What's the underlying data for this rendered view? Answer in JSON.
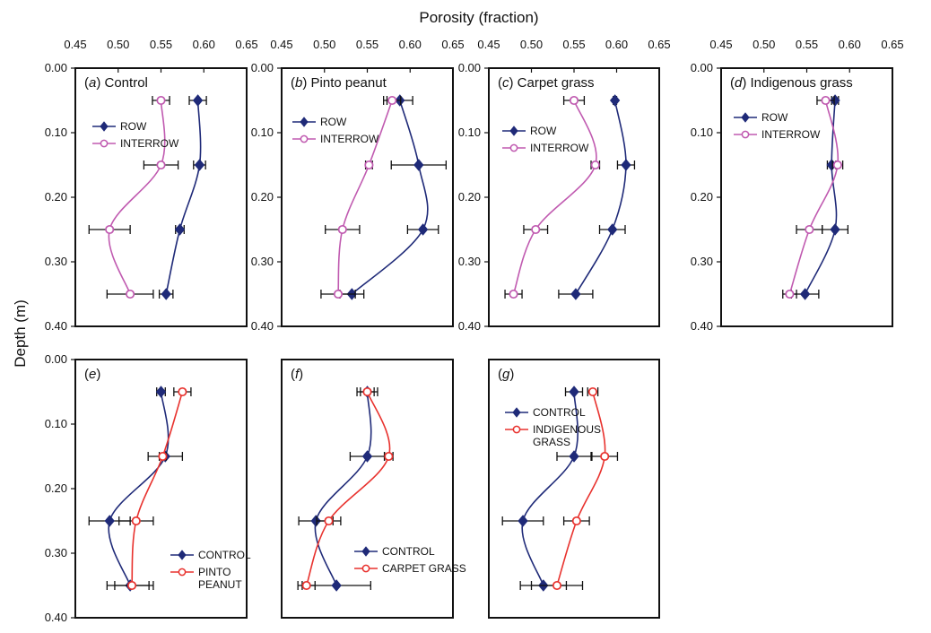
{
  "figure": {
    "x_axis_title": "Porosity (fraction)",
    "y_axis_title": "Depth (m)"
  },
  "chart_data": [
    {
      "type": "line",
      "panel_letter": "a",
      "panel_title": "Control",
      "xlim": [
        0.45,
        0.65
      ],
      "xticks": [
        "0.45",
        "0.50",
        "0.55",
        "0.60",
        "0.65"
      ],
      "ylim": [
        0,
        0.4
      ],
      "yticks": [
        "0.00",
        "0.10",
        "0.20",
        "0.30",
        "0.40"
      ],
      "legend_position": "upper-left",
      "depths": [
        0.05,
        0.15,
        0.25,
        0.35
      ],
      "series": [
        {
          "name": "ROW",
          "color": "#1f2a78",
          "marker": "diamond",
          "values": [
            0.593,
            0.595,
            0.572,
            0.556
          ],
          "errors": [
            0.01,
            0.007,
            0.005,
            0.008
          ]
        },
        {
          "name": "INTERROW",
          "color": "#c05ab0",
          "marker": "open-circle",
          "values": [
            0.55,
            0.55,
            0.49,
            0.514
          ],
          "errors": [
            0.01,
            0.02,
            0.024,
            0.027
          ]
        }
      ]
    },
    {
      "type": "line",
      "panel_letter": "b",
      "panel_title": "Pinto peanut",
      "xlim": [
        0.45,
        0.65
      ],
      "xticks": [
        "0.45",
        "0.50",
        "0.55",
        "0.60",
        "0.65"
      ],
      "ylim": [
        0,
        0.4
      ],
      "yticks": [
        "0.00",
        "0.10",
        "0.20",
        "0.30",
        "0.40"
      ],
      "legend_position": "upper-left",
      "depths": [
        0.05,
        0.15,
        0.25,
        0.35
      ],
      "series": [
        {
          "name": "ROW",
          "color": "#1f2a78",
          "marker": "diamond",
          "values": [
            0.588,
            0.61,
            0.615,
            0.532
          ],
          "errors": [
            0.015,
            0.032,
            0.018,
            0.014
          ]
        },
        {
          "name": "INTERROW",
          "color": "#c05ab0",
          "marker": "open-circle",
          "values": [
            0.579,
            0.552,
            0.521,
            0.516
          ],
          "errors": [
            0.01,
            0.004,
            0.02,
            0.02
          ]
        }
      ]
    },
    {
      "type": "line",
      "panel_letter": "c",
      "panel_title": "Carpet grass",
      "xlim": [
        0.45,
        0.65
      ],
      "xticks": [
        "0.45",
        "0.50",
        "0.55",
        "0.60",
        "0.65"
      ],
      "ylim": [
        0,
        0.4
      ],
      "yticks": [
        "0.00",
        "0.10",
        "0.20",
        "0.30",
        "0.40"
      ],
      "legend_position": "upper-left",
      "depths": [
        0.05,
        0.15,
        0.25,
        0.35
      ],
      "series": [
        {
          "name": "ROW",
          "color": "#1f2a78",
          "marker": "diamond",
          "values": [
            0.598,
            0.611,
            0.595,
            0.552
          ],
          "errors": [
            0.002,
            0.01,
            0.015,
            0.02
          ]
        },
        {
          "name": "INTERROW",
          "color": "#c05ab0",
          "marker": "open-circle",
          "values": [
            0.55,
            0.575,
            0.505,
            0.479
          ],
          "errors": [
            0.012,
            0.005,
            0.014,
            0.01
          ]
        }
      ]
    },
    {
      "type": "line",
      "panel_letter": "d",
      "panel_title": "Indigenous grass",
      "xlim": [
        0.45,
        0.65
      ],
      "xticks": [
        "0.45",
        "0.50",
        "0.55",
        "0.60",
        "0.65"
      ],
      "ylim": [
        0,
        0.4
      ],
      "yticks": [
        "0.00",
        "0.10",
        "0.20",
        "0.30",
        "0.40"
      ],
      "legend_position": "upper-left",
      "depths": [
        0.05,
        0.15,
        0.25,
        0.35
      ],
      "series": [
        {
          "name": "ROW",
          "color": "#1f2a78",
          "marker": "diamond",
          "values": [
            0.583,
            0.579,
            0.583,
            0.548
          ],
          "errors": [
            0.004,
            0.005,
            0.015,
            0.016
          ]
        },
        {
          "name": "INTERROW",
          "color": "#c05ab0",
          "marker": "open-circle",
          "values": [
            0.572,
            0.586,
            0.553,
            0.53
          ],
          "errors": [
            0.01,
            0.006,
            0.015,
            0.008
          ]
        }
      ]
    },
    {
      "type": "line",
      "panel_letter": "e",
      "panel_title": "",
      "xlim": [
        0.45,
        0.65
      ],
      "xticks": [],
      "ylim": [
        0,
        0.4
      ],
      "yticks": [
        "0.00",
        "0.10",
        "0.20",
        "0.30",
        "0.40"
      ],
      "legend_position": "lower-right",
      "depths": [
        0.05,
        0.15,
        0.25,
        0.35
      ],
      "series": [
        {
          "name": "CONTROL",
          "color": "#1f2a78",
          "marker": "diamond",
          "values": [
            0.55,
            0.555,
            0.49,
            0.514
          ],
          "errors": [
            0.005,
            0.02,
            0.024,
            0.027
          ]
        },
        {
          "name": "PINTO\nPEANUT",
          "color": "#e8322e",
          "marker": "open-circle",
          "values": [
            0.575,
            0.552,
            0.521,
            0.516
          ],
          "errors": [
            0.01,
            0.004,
            0.02,
            0.02
          ]
        }
      ]
    },
    {
      "type": "line",
      "panel_letter": "f",
      "panel_title": "",
      "xlim": [
        0.45,
        0.65
      ],
      "xticks": [],
      "ylim": [
        0,
        0.4
      ],
      "yticks": [],
      "legend_position": "lower-right",
      "depths": [
        0.05,
        0.15,
        0.25,
        0.35
      ],
      "series": [
        {
          "name": "CONTROL",
          "color": "#1f2a78",
          "marker": "diamond",
          "values": [
            0.55,
            0.55,
            0.49,
            0.514
          ],
          "errors": [
            0.008,
            0.02,
            0.02,
            0.04
          ]
        },
        {
          "name": "CARPET GRASS",
          "color": "#e8322e",
          "marker": "open-circle",
          "values": [
            0.55,
            0.575,
            0.505,
            0.479
          ],
          "errors": [
            0.012,
            0.005,
            0.014,
            0.01
          ]
        }
      ]
    },
    {
      "type": "line",
      "panel_letter": "g",
      "panel_title": "",
      "xlim": [
        0.45,
        0.65
      ],
      "xticks": [],
      "ylim": [
        0,
        0.4
      ],
      "yticks": [],
      "legend_position": "upper-left",
      "depths": [
        0.05,
        0.15,
        0.25,
        0.35
      ],
      "series": [
        {
          "name": "CONTROL",
          "color": "#1f2a78",
          "marker": "diamond",
          "values": [
            0.55,
            0.55,
            0.49,
            0.514
          ],
          "errors": [
            0.01,
            0.02,
            0.024,
            0.027
          ]
        },
        {
          "name": "INDIGENOUS\nGRASS",
          "color": "#e8322e",
          "marker": "open-circle",
          "values": [
            0.572,
            0.586,
            0.553,
            0.53
          ],
          "errors": [
            0.006,
            0.015,
            0.015,
            0.03
          ]
        }
      ]
    }
  ]
}
